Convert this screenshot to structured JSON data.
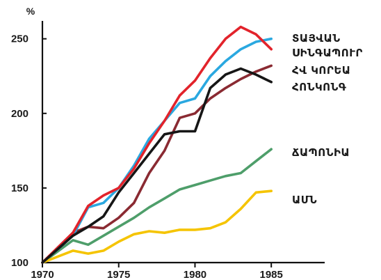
{
  "chart_data": {
    "type": "line",
    "ylabel": "%",
    "xlim": [
      1970,
      1988.5
    ],
    "ylim": [
      100,
      262
    ],
    "x_ticks": [
      1970,
      1975,
      1980,
      1985
    ],
    "y_ticks": [
      100,
      150,
      200,
      250
    ],
    "grid": false,
    "legend": "labels at right end of lines",
    "series": [
      {
        "name": "ՏԱՅՎԱՆ",
        "color": "#2aa8e0",
        "x": [
          1970,
          1972,
          1973,
          1974,
          1975,
          1976,
          1977,
          1978,
          1979,
          1980,
          1981,
          1982,
          1983,
          1984,
          1985
        ],
        "y": [
          100,
          118,
          137,
          140,
          150,
          165,
          183,
          195,
          207,
          210,
          225,
          235,
          243,
          248,
          250
        ]
      },
      {
        "name": "ՍԻՆԳԱՊՈՒՐ",
        "color": "#e2232b",
        "x": [
          1970,
          1972,
          1973,
          1974,
          1975,
          1976,
          1977,
          1978,
          1979,
          1980,
          1981,
          1982,
          1983,
          1984,
          1985
        ],
        "y": [
          100,
          120,
          138,
          145,
          150,
          163,
          180,
          195,
          212,
          222,
          237,
          250,
          258,
          253,
          243
        ]
      },
      {
        "name": "ՀՎ ԿՈՐԵԱ",
        "color": "#8a2a32",
        "x": [
          1970,
          1972,
          1973,
          1974,
          1975,
          1976,
          1977,
          1978,
          1979,
          1980,
          1981,
          1982,
          1983,
          1984,
          1985
        ],
        "y": [
          100,
          120,
          124,
          123,
          130,
          140,
          160,
          175,
          197,
          200,
          210,
          217,
          223,
          228,
          232
        ]
      },
      {
        "name": "ՀՈՆԿՈՆԳ",
        "color": "#161616",
        "x": [
          1970,
          1972,
          1973,
          1974,
          1975,
          1976,
          1977,
          1978,
          1979,
          1980,
          1981,
          1982,
          1983,
          1984,
          1985
        ],
        "y": [
          100,
          118,
          124,
          131,
          147,
          160,
          173,
          186,
          188,
          188,
          217,
          226,
          230,
          226,
          221
        ]
      },
      {
        "name": "ՃԱՊՈՆԻԱ",
        "color": "#4e9e6a",
        "x": [
          1970,
          1972,
          1973,
          1974,
          1975,
          1976,
          1977,
          1978,
          1979,
          1980,
          1981,
          1982,
          1983,
          1984,
          1985
        ],
        "y": [
          100,
          115,
          112,
          118,
          124,
          130,
          137,
          143,
          149,
          152,
          155,
          158,
          160,
          168,
          176
        ]
      },
      {
        "name": "ԱՄՆ",
        "color": "#f5c400",
        "x": [
          1970,
          1972,
          1973,
          1974,
          1975,
          1976,
          1977,
          1978,
          1979,
          1980,
          1981,
          1982,
          1983,
          1984,
          1985
        ],
        "y": [
          100,
          108,
          106,
          108,
          114,
          119,
          121,
          120,
          122,
          122,
          123,
          127,
          136,
          147,
          148
        ]
      }
    ]
  }
}
